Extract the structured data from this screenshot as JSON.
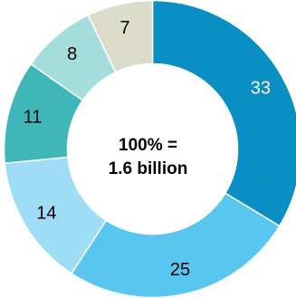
{
  "chart_data": {
    "type": "pie",
    "variant": "donut",
    "center_label_lines": [
      "100% =",
      "1.6 billion"
    ],
    "slices": [
      {
        "value": 33,
        "label": "33",
        "color": "#0a8fc4",
        "label_color": "#ffffff"
      },
      {
        "value": 25,
        "label": "25",
        "color": "#58c6ef",
        "label_color": "#000000"
      },
      {
        "value": 14,
        "label": "14",
        "color": "#9fdcf5",
        "label_color": "#000000"
      },
      {
        "value": 11,
        "label": "11",
        "color": "#3fb7b8",
        "label_color": "#000000"
      },
      {
        "value": 8,
        "label": "8",
        "color": "#a5dcdc",
        "label_color": "#000000"
      },
      {
        "value": 7,
        "label": "7",
        "color": "#dcdccb",
        "label_color": "#000000"
      }
    ],
    "start_angle": "12 o'clock",
    "direction": "clockwise",
    "legend": "none"
  }
}
